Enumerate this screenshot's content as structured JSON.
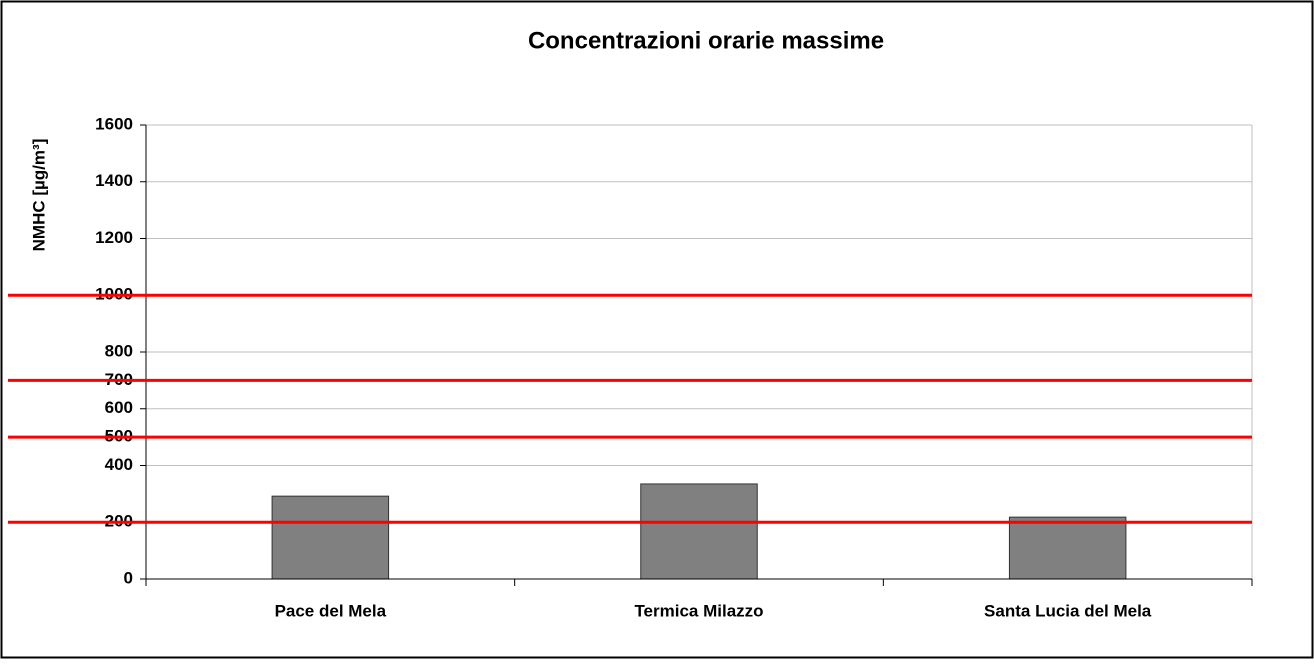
{
  "chart_data": {
    "type": "bar",
    "title": "Concentrazioni orarie massime",
    "y_label": "NMHC [µg/m³]",
    "categories": [
      "Pace del Mela",
      "Termica Milazzo",
      "Santa Lucia del Mela"
    ],
    "values": [
      292,
      335,
      218
    ],
    "color": "#808080",
    "thresholds": [
      200,
      500,
      700,
      1000
    ],
    "threshold_color": "#ff0000",
    "ylim": [
      0,
      1600
    ],
    "yticks": [
      0,
      200,
      400,
      500,
      600,
      700,
      800,
      1000,
      1200,
      1400,
      1600
    ],
    "grid": true
  }
}
